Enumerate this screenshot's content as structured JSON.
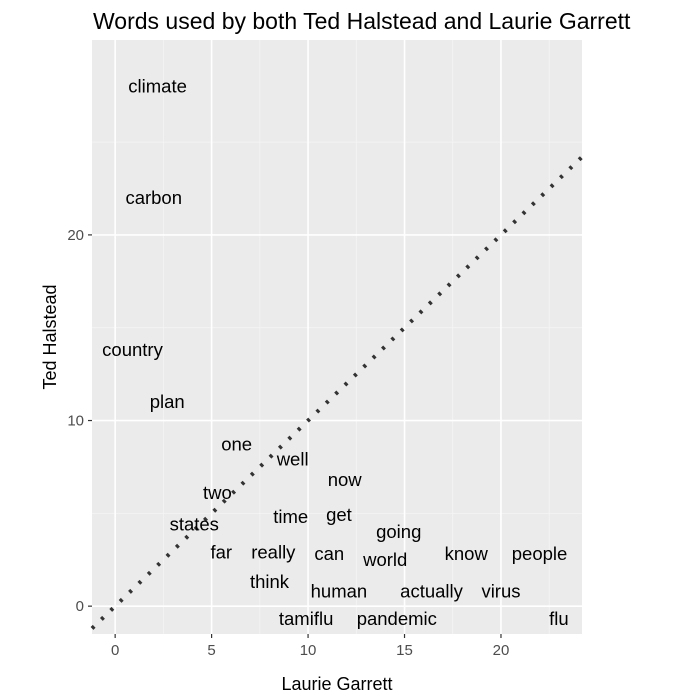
{
  "chart_data": {
    "type": "scatter",
    "title": "Words used by both Ted Halstead and Laurie Garrett",
    "xlabel": "Laurie Garrett",
    "ylabel": "Ted Halstead",
    "xlim": [
      -1.2,
      24.2
    ],
    "ylim": [
      -1.5,
      30.5
    ],
    "x_ticks": [
      0,
      5,
      10,
      15,
      20
    ],
    "y_ticks": [
      0,
      10,
      20
    ],
    "reference_line": {
      "slope": 1,
      "intercept": 0,
      "style": "dotted"
    },
    "grid": true,
    "points": [
      {
        "label": "climate",
        "x": 2.2,
        "y": 28
      },
      {
        "label": "carbon",
        "x": 2.0,
        "y": 22
      },
      {
        "label": "country",
        "x": 0.9,
        "y": 13.8
      },
      {
        "label": "plan",
        "x": 2.7,
        "y": 11
      },
      {
        "label": "one",
        "x": 6.3,
        "y": 8.7
      },
      {
        "label": "well",
        "x": 9.2,
        "y": 7.9
      },
      {
        "label": "now",
        "x": 11.9,
        "y": 6.8
      },
      {
        "label": "two",
        "x": 5.3,
        "y": 6.1
      },
      {
        "label": "time",
        "x": 9.1,
        "y": 4.8
      },
      {
        "label": "get",
        "x": 11.6,
        "y": 4.9
      },
      {
        "label": "states",
        "x": 4.1,
        "y": 4.4
      },
      {
        "label": "going",
        "x": 14.7,
        "y": 4.0
      },
      {
        "label": "far",
        "x": 5.5,
        "y": 2.9
      },
      {
        "label": "really",
        "x": 8.2,
        "y": 2.9
      },
      {
        "label": "can",
        "x": 11.1,
        "y": 2.8
      },
      {
        "label": "world",
        "x": 14.0,
        "y": 2.5
      },
      {
        "label": "know",
        "x": 18.2,
        "y": 2.8
      },
      {
        "label": "people",
        "x": 22.0,
        "y": 2.8
      },
      {
        "label": "think",
        "x": 8.0,
        "y": 1.3
      },
      {
        "label": "human",
        "x": 11.6,
        "y": 0.8
      },
      {
        "label": "actually",
        "x": 16.4,
        "y": 0.8
      },
      {
        "label": "virus",
        "x": 20.0,
        "y": 0.8
      },
      {
        "label": "tamiflu",
        "x": 9.9,
        "y": -0.7
      },
      {
        "label": "pandemic",
        "x": 14.6,
        "y": -0.7
      },
      {
        "label": "flu",
        "x": 23.0,
        "y": -0.7
      }
    ]
  }
}
